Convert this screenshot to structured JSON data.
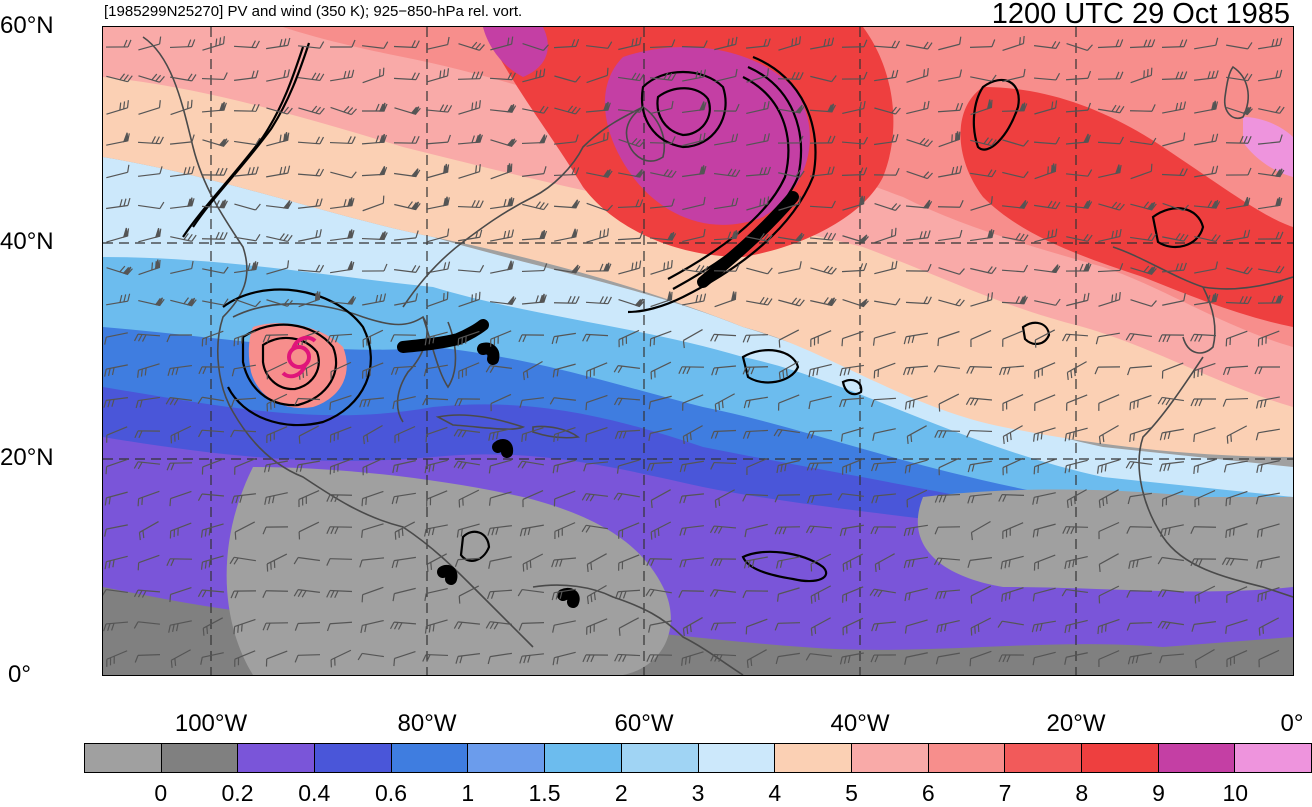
{
  "header": {
    "left_title": "[1985299N25270] PV and wind (350 K); 925−850-hPa rel. vort.",
    "right_title": "1200 UTC 29 Oct 1985"
  },
  "axes": {
    "lat_labels": [
      "60°N",
      "40°N",
      "20°N",
      "0°"
    ],
    "lon_labels": [
      "100°W",
      "80°W",
      "60°W",
      "40°W",
      "20°W",
      "0°"
    ]
  },
  "colorbar": {
    "colors": [
      "#a0a0a0",
      "#808080",
      "#7a55d9",
      "#4a56d9",
      "#3f7de0",
      "#6b9cec",
      "#6cbcee",
      "#a0d4f4",
      "#cce8fb",
      "#fbd0b4",
      "#f9aaa8",
      "#f78e8c",
      "#f25a5a",
      "#ee3f3f",
      "#c43fa4",
      "#ee94dd"
    ],
    "labels": [
      "0",
      "0.2",
      "0.4",
      "0.6",
      "1",
      "1.5",
      "2",
      "3",
      "4",
      "5",
      "6",
      "7",
      "8",
      "9",
      "10"
    ]
  },
  "map_colors": {
    "grey": "#a0a0a0",
    "darkgrey": "#808080",
    "purple": "#7a55d9",
    "blue": "#4a56d9",
    "midblue": "#3f7de0",
    "lightblue": "#6cbcee",
    "paleblue": "#cce8fb",
    "peach": "#fbd0b4",
    "pink": "#f9aaa8",
    "salmon": "#f78e8c",
    "red": "#ee3f3f",
    "magenta": "#c43fa4",
    "lightmagenta": "#ee94dd",
    "contour": "#000000",
    "coast": "#4a4a4a",
    "barb": "#555555",
    "storm_marker": "#e0157a"
  }
}
